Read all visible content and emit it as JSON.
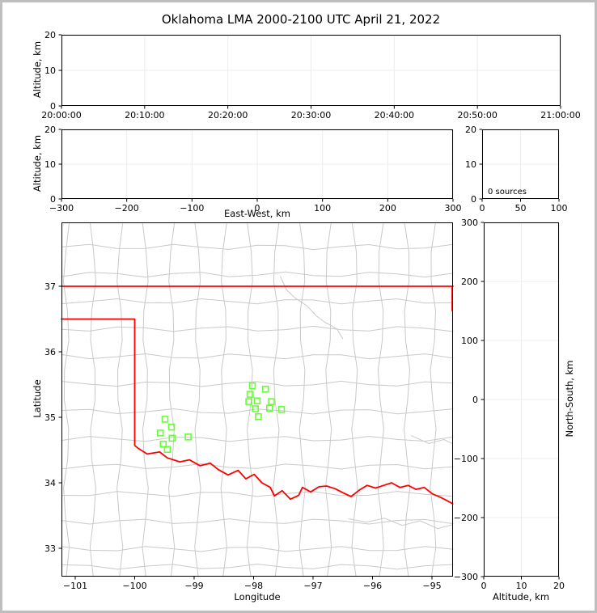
{
  "title": "Oklahoma LMA 2000-2100 UTC April 21, 2022",
  "colors": {
    "axis": "#000000",
    "grid": "#ececec",
    "county_line": "#c9c9c9",
    "state_border": "#ff0000",
    "marker": "#66ff33",
    "figure_border": "#bebebe"
  },
  "labels": {
    "altitude_axis": "Altitude, km",
    "east_west_axis": "East-West, km",
    "latitude_axis": "Latitude",
    "longitude_axis": "Longitude",
    "north_south_axis": "North-South, km"
  },
  "chart_data": [
    {
      "id": "time_height",
      "type": "scatter",
      "title": "",
      "xlabel": "",
      "ylabel": "Altitude, km",
      "xlim": [
        0,
        3600
      ],
      "ylim": [
        0,
        20
      ],
      "xticks": [
        0,
        600,
        1200,
        1800,
        2400,
        3000,
        3600
      ],
      "xtick_labels": [
        "20:00:00",
        "20:10:00",
        "20:20:00",
        "20:30:00",
        "20:40:00",
        "20:50:00",
        "21:00:00"
      ],
      "yticks": [
        0,
        10,
        20
      ],
      "ytick_labels": [
        "0",
        "10",
        "20"
      ],
      "grid": true,
      "points": []
    },
    {
      "id": "ew_height",
      "type": "scatter",
      "xlabel": "East-West, km",
      "ylabel": "Altitude, km",
      "xlim": [
        -300,
        300
      ],
      "ylim": [
        0,
        20
      ],
      "xticks": [
        -300,
        -200,
        -100,
        0,
        100,
        200,
        300
      ],
      "xtick_labels": [
        "−300",
        "−200",
        "−100",
        "0",
        "100",
        "200",
        "300"
      ],
      "yticks": [
        0,
        10,
        20
      ],
      "ytick_labels": [
        "0",
        "10",
        "20"
      ],
      "grid": true,
      "points": []
    },
    {
      "id": "source_histogram",
      "type": "line",
      "xlabel": "",
      "ylabel": "",
      "xlim": [
        0,
        100
      ],
      "ylim": [
        0,
        20
      ],
      "xticks": [
        0,
        50,
        100
      ],
      "xtick_labels": [
        "0",
        "50",
        "100"
      ],
      "yticks": [
        0,
        10,
        20
      ],
      "ytick_labels": [
        "0",
        "10",
        "20"
      ],
      "grid": true,
      "annotation": "0 sources",
      "points": []
    },
    {
      "id": "plan_view",
      "type": "scatter",
      "xlabel": "Longitude",
      "ylabel": "Latitude",
      "xlim": [
        -101.231,
        -94.646
      ],
      "ylim": [
        32.568,
        37.975
      ],
      "xticks": [
        -101,
        -100,
        -99,
        -98,
        -97,
        -96,
        -95
      ],
      "xtick_labels": [
        "−101",
        "−100",
        "−99",
        "−98",
        "−97",
        "−96",
        "−95"
      ],
      "yticks": [
        33,
        34,
        35,
        36,
        37
      ],
      "ytick_labels": [
        "33",
        "34",
        "35",
        "36",
        "37"
      ],
      "grid": false,
      "marker": "square-open",
      "points": [
        [
          -98.02,
          35.48
        ],
        [
          -97.8,
          35.43
        ],
        [
          -98.06,
          35.35
        ],
        [
          -97.94,
          35.25
        ],
        [
          -98.08,
          35.24
        ],
        [
          -97.7,
          35.24
        ],
        [
          -97.73,
          35.14
        ],
        [
          -97.97,
          35.13
        ],
        [
          -97.53,
          35.12
        ],
        [
          -97.92,
          35.01
        ],
        [
          -99.49,
          34.97
        ],
        [
          -99.38,
          34.85
        ],
        [
          -99.57,
          34.76
        ],
        [
          -99.37,
          34.68
        ],
        [
          -99.1,
          34.7
        ],
        [
          -99.52,
          34.59
        ],
        [
          -99.45,
          34.51
        ]
      ],
      "county_verticals": [
        -101.15,
        -100.7,
        -100.25,
        -99.82,
        -99.38,
        -98.94,
        -98.5,
        -98.06,
        -97.62,
        -97.18,
        -96.74,
        -96.3,
        -95.86,
        -95.42,
        -94.98
      ],
      "county_horizontals": [
        37.6,
        37.18,
        36.77,
        36.35,
        35.93,
        35.51,
        35.09,
        34.67,
        34.25,
        33.83,
        33.41,
        32.99,
        32.72
      ],
      "shapes": [
        {
          "name": "river-northeast",
          "color": "county_line",
          "w": 1,
          "points": [
            [
              -97.55,
              37.15
            ],
            [
              -97.45,
              36.95
            ],
            [
              -97.3,
              36.82
            ],
            [
              -97.1,
              36.7
            ],
            [
              -96.95,
              36.55
            ],
            [
              -96.8,
              36.45
            ],
            [
              -96.6,
              36.35
            ],
            [
              -96.5,
              36.2
            ]
          ]
        },
        {
          "name": "river-southeast",
          "color": "county_line",
          "w": 1,
          "points": [
            [
              -96.4,
              33.45
            ],
            [
              -96.1,
              33.4
            ],
            [
              -95.8,
              33.46
            ],
            [
              -95.5,
              33.35
            ],
            [
              -95.2,
              33.42
            ],
            [
              -94.9,
              33.3
            ],
            [
              -94.66,
              33.36
            ]
          ]
        },
        {
          "name": "river-east",
          "color": "county_line",
          "w": 1,
          "points": [
            [
              -95.35,
              34.72
            ],
            [
              -95.05,
              34.6
            ],
            [
              -94.8,
              34.66
            ],
            [
              -94.66,
              34.6
            ]
          ]
        },
        {
          "name": "state-border-kansas",
          "color": "state_border",
          "w": 1.8,
          "points": [
            [
              -101.231,
              37.0
            ],
            [
              -94.646,
              37.0
            ]
          ]
        },
        {
          "name": "state-border-east",
          "color": "state_border",
          "w": 1.8,
          "points": [
            [
              -94.66,
              37.0
            ],
            [
              -94.66,
              36.63
            ]
          ]
        },
        {
          "name": "state-border-west-and-red-river",
          "color": "state_border",
          "w": 1.8,
          "points": [
            [
              -101.231,
              36.5
            ],
            [
              -100.0,
              36.5
            ],
            [
              -100.0,
              34.57
            ],
            [
              -99.93,
              34.52
            ],
            [
              -99.79,
              34.44
            ],
            [
              -99.58,
              34.47
            ],
            [
              -99.45,
              34.38
            ],
            [
              -99.24,
              34.32
            ],
            [
              -99.08,
              34.35
            ],
            [
              -98.9,
              34.26
            ],
            [
              -98.73,
              34.3
            ],
            [
              -98.59,
              34.2
            ],
            [
              -98.43,
              34.12
            ],
            [
              -98.26,
              34.19
            ],
            [
              -98.13,
              34.06
            ],
            [
              -97.99,
              34.13
            ],
            [
              -97.86,
              34.0
            ],
            [
              -97.72,
              33.93
            ],
            [
              -97.65,
              33.8
            ],
            [
              -97.52,
              33.88
            ],
            [
              -97.38,
              33.75
            ],
            [
              -97.24,
              33.81
            ],
            [
              -97.18,
              33.93
            ],
            [
              -97.04,
              33.86
            ],
            [
              -96.9,
              33.94
            ],
            [
              -96.77,
              33.95
            ],
            [
              -96.63,
              33.91
            ],
            [
              -96.5,
              33.85
            ],
            [
              -96.36,
              33.79
            ],
            [
              -96.22,
              33.89
            ],
            [
              -96.09,
              33.96
            ],
            [
              -95.95,
              33.92
            ],
            [
              -95.81,
              33.96
            ],
            [
              -95.68,
              34.0
            ],
            [
              -95.54,
              33.93
            ],
            [
              -95.4,
              33.96
            ],
            [
              -95.27,
              33.9
            ],
            [
              -95.13,
              33.93
            ],
            [
              -94.99,
              33.83
            ],
            [
              -94.86,
              33.78
            ],
            [
              -94.75,
              33.73
            ],
            [
              -94.65,
              33.68
            ]
          ]
        }
      ]
    },
    {
      "id": "ns_height",
      "type": "scatter",
      "xlabel": "Altitude, km",
      "ylabel": "North-South, km",
      "xlim": [
        0,
        20
      ],
      "ylim": [
        -300,
        300
      ],
      "xticks": [
        0,
        10,
        20
      ],
      "xtick_labels": [
        "0",
        "10",
        "20"
      ],
      "yticks": [
        -300,
        -200,
        -100,
        0,
        100,
        200,
        300
      ],
      "ytick_labels": [
        "−300",
        "−200",
        "−100",
        "0",
        "100",
        "200",
        "300"
      ],
      "grid": true,
      "points": []
    }
  ]
}
